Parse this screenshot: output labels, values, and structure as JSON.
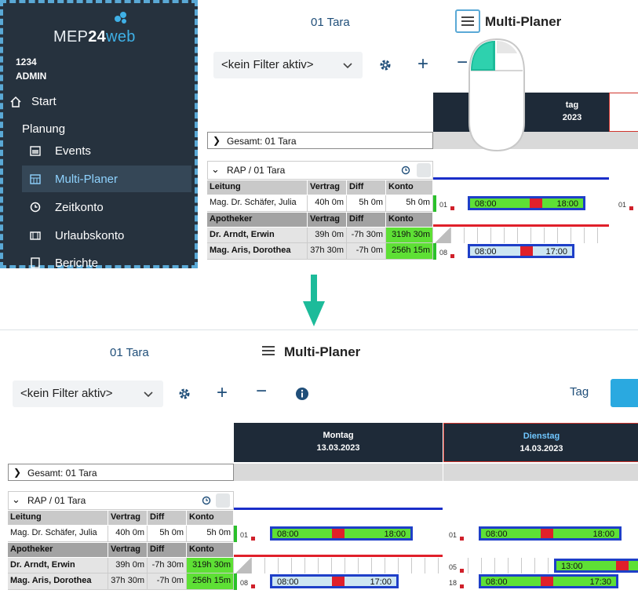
{
  "sidebar": {
    "logo_prefix": "MEP",
    "logo_number": "24",
    "logo_suffix": "web",
    "org_id": "1234",
    "user": "ADMIN",
    "start_label": "Start",
    "section_label": "Planung",
    "items": [
      {
        "label": "Events",
        "icon": "calendar-icon"
      },
      {
        "label": "Multi-Planer",
        "icon": "grid-calendar-icon",
        "active": true
      },
      {
        "label": "Zeitkonto",
        "icon": "clock-icon"
      },
      {
        "label": "Urlaubskonto",
        "icon": "book-icon"
      },
      {
        "label": "Berichte",
        "icon": "report-icon"
      }
    ]
  },
  "header": {
    "context": "01 Tara",
    "title": "Multi-Planer"
  },
  "toolbar": {
    "filter_value": "<kein Filter aktiv>",
    "plus": "+",
    "minus": "−",
    "view_tag": "Tag"
  },
  "planner": {
    "days": [
      {
        "name": "Montag",
        "date": "13.03.2023"
      },
      {
        "name": "Dienstag",
        "date": "14.03.2023",
        "today": true
      }
    ],
    "top_day_partial": {
      "name": "tag",
      "date": "2023"
    },
    "total_label": "Gesamt: 01 Tara",
    "group_label": "RAP / 01 Tara",
    "columns": [
      "Vertrag",
      "Diff",
      "Konto"
    ],
    "leitung_label": "Leitung",
    "apotheker_label": "Apotheker",
    "rows": {
      "schaefer": {
        "name": "Mag. Dr. Schäfer, Julia",
        "vertrag": "40h 0m",
        "diff": "5h 0m",
        "konto": "5h 0m"
      },
      "arndt": {
        "name": "Dr. Arndt, Erwin",
        "vertrag": "39h 0m",
        "diff": "-7h 30m",
        "konto": "319h 30m"
      },
      "aris": {
        "name": "Mag. Aris, Dorothea",
        "vertrag": "37h 30m",
        "diff": "-7h 0m",
        "konto": "256h 15m"
      }
    },
    "shifts": {
      "schaefer_mon": {
        "day": "01",
        "from": "08:00",
        "to": "18:00"
      },
      "schaefer_tue": {
        "day": "01",
        "from": "08:00",
        "to": "18:00"
      },
      "arndt_tue": {
        "day": "05",
        "from": "13:00"
      },
      "aris_mon": {
        "day": "08",
        "from": "08:00",
        "to": "17:00"
      },
      "aris_tue": {
        "day": "18",
        "from": "08:00",
        "to": "17:30"
      }
    }
  },
  "colors": {
    "sidebar_bg": "#26323e",
    "accent": "#2aa9e0",
    "shift_green": "#5ee035",
    "break_red": "#e0202a",
    "shift_border": "#1e3fc8"
  }
}
